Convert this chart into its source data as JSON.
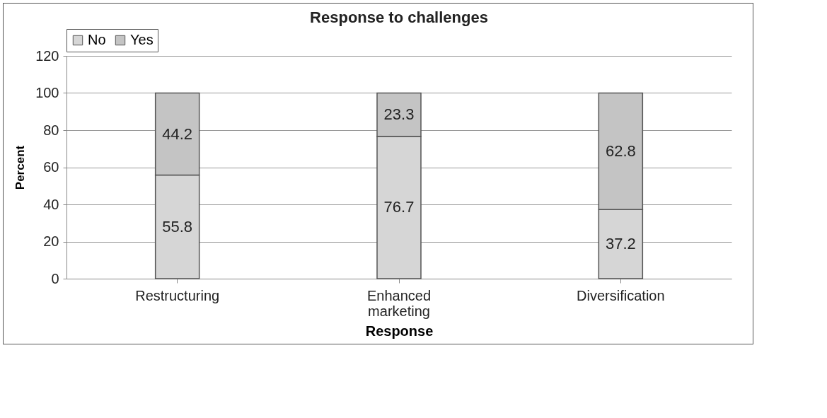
{
  "chart_data": {
    "type": "bar",
    "title": "Response to challenges",
    "xlabel": "Response",
    "ylabel": "Percent",
    "categories": [
      "Restructuring",
      "Enhanced marketing",
      "Diversification"
    ],
    "series": [
      {
        "name": "No",
        "color": "#d6d6d6",
        "values": [
          55.8,
          76.7,
          37.2
        ]
      },
      {
        "name": "Yes",
        "color": "#c4c4c4",
        "values": [
          44.2,
          23.3,
          62.8
        ]
      }
    ],
    "stacked": true,
    "ylim": [
      0,
      120
    ],
    "yticks": [
      0,
      20,
      40,
      60,
      80,
      100,
      120
    ],
    "grid": "y",
    "legend": "top",
    "data_labels": true
  }
}
